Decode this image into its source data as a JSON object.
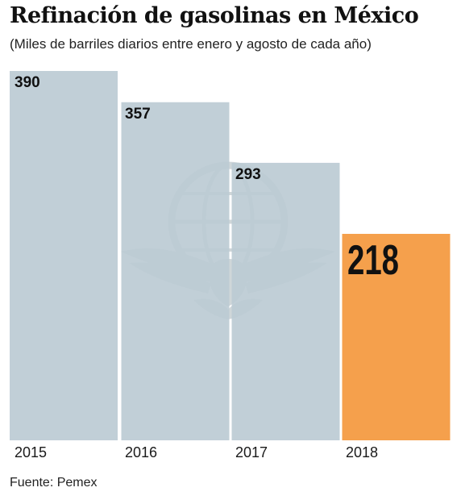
{
  "title": "Refinación de gasolinas en México",
  "subtitle": "(Miles de barriles diarios entre enero y agosto de cada año)",
  "source": "Fuente: Pemex",
  "colors": {
    "bar": "#bccbd4",
    "highlight": "#f5a04c",
    "watermark": "#a9b5bb",
    "label": "#111111"
  },
  "chart_data": {
    "type": "bar",
    "title": "Refinación de gasolinas en México",
    "subtitle": "(Miles de barriles diarios entre enero y agosto de cada año)",
    "categories": [
      "2015",
      "2016",
      "2017",
      "2018"
    ],
    "values": [
      390,
      357,
      293,
      218
    ],
    "value_labels": [
      "390",
      "357",
      "293",
      "218"
    ],
    "highlight_index": 3,
    "ylim": [
      0,
      390
    ],
    "grid": false,
    "legend": "none",
    "xlabel": "",
    "ylabel": ""
  }
}
